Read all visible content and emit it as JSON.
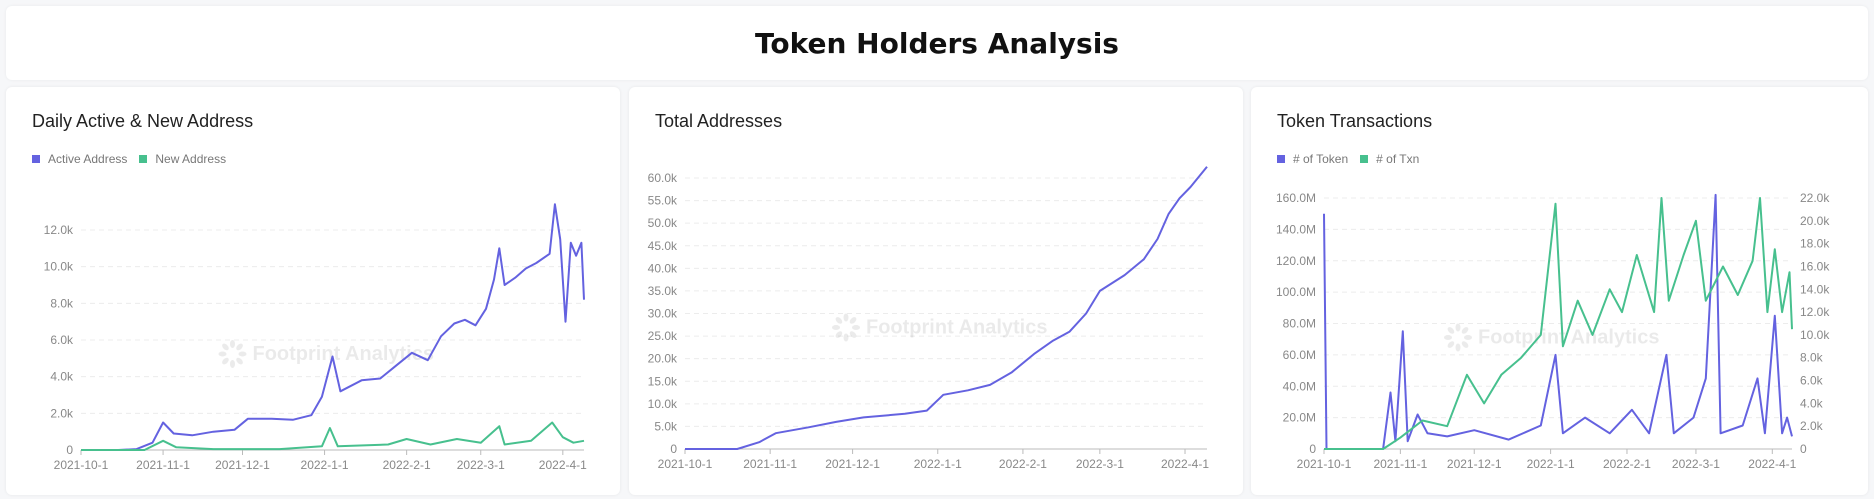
{
  "page_title": "Token Holders Analysis",
  "watermark": "Footprint Analytics",
  "colors": {
    "purple": "#6462e0",
    "green": "#47c08e"
  },
  "chart_data": [
    {
      "type": "line",
      "title": "Daily Active & New Address",
      "x_ticks": [
        "2021-10-1",
        "2021-11-1",
        "2021-12-1",
        "2022-1-1",
        "2022-2-1",
        "2022-3-1",
        "2022-4-1"
      ],
      "y_ticks": [
        "0",
        "2.0k",
        "4.0k",
        "6.0k",
        "8.0k",
        "10.0k",
        "12.0k"
      ],
      "ylim": [
        0,
        12000
      ],
      "xlim": [
        "2021-10-01",
        "2022-04-09"
      ],
      "series": [
        {
          "name": "Active Address",
          "color": "#6462e0",
          "points": [
            [
              "2021-10-01",
              0
            ],
            [
              "2021-10-15",
              0
            ],
            [
              "2021-10-22",
              50
            ],
            [
              "2021-10-28",
              400
            ],
            [
              "2021-11-01",
              1500
            ],
            [
              "2021-11-05",
              900
            ],
            [
              "2021-11-12",
              800
            ],
            [
              "2021-11-20",
              1000
            ],
            [
              "2021-11-28",
              1100
            ],
            [
              "2021-12-03",
              1700
            ],
            [
              "2021-12-12",
              1700
            ],
            [
              "2021-12-20",
              1650
            ],
            [
              "2021-12-27",
              1900
            ],
            [
              "2021-12-31",
              2900
            ],
            [
              "2022-01-04",
              5100
            ],
            [
              "2022-01-07",
              3200
            ],
            [
              "2022-01-15",
              3800
            ],
            [
              "2022-01-22",
              3900
            ],
            [
              "2022-01-28",
              4600
            ],
            [
              "2022-02-03",
              5300
            ],
            [
              "2022-02-09",
              4900
            ],
            [
              "2022-02-14",
              6200
            ],
            [
              "2022-02-19",
              6900
            ],
            [
              "2022-02-23",
              7100
            ],
            [
              "2022-02-27",
              6800
            ],
            [
              "2022-03-03",
              7700
            ],
            [
              "2022-03-06",
              9300
            ],
            [
              "2022-03-08",
              11000
            ],
            [
              "2022-03-10",
              9000
            ],
            [
              "2022-03-14",
              9400
            ],
            [
              "2022-03-18",
              9900
            ],
            [
              "2022-03-22",
              10200
            ],
            [
              "2022-03-27",
              10700
            ],
            [
              "2022-03-29",
              13400
            ],
            [
              "2022-03-31",
              11500
            ],
            [
              "2022-04-02",
              7000
            ],
            [
              "2022-04-04",
              11300
            ],
            [
              "2022-04-06",
              10600
            ],
            [
              "2022-04-08",
              11300
            ],
            [
              "2022-04-09",
              8200
            ]
          ]
        },
        {
          "name": "New Address",
          "color": "#47c08e",
          "points": [
            [
              "2021-10-01",
              0
            ],
            [
              "2021-10-25",
              0
            ],
            [
              "2021-11-01",
              500
            ],
            [
              "2021-11-06",
              150
            ],
            [
              "2021-11-20",
              50
            ],
            [
              "2021-12-15",
              50
            ],
            [
              "2021-12-31",
              200
            ],
            [
              "2022-01-03",
              1200
            ],
            [
              "2022-01-06",
              200
            ],
            [
              "2022-01-25",
              300
            ],
            [
              "2022-02-01",
              600
            ],
            [
              "2022-02-10",
              300
            ],
            [
              "2022-02-20",
              600
            ],
            [
              "2022-03-01",
              400
            ],
            [
              "2022-03-08",
              1300
            ],
            [
              "2022-03-10",
              300
            ],
            [
              "2022-03-20",
              500
            ],
            [
              "2022-03-28",
              1500
            ],
            [
              "2022-04-01",
              700
            ],
            [
              "2022-04-05",
              400
            ],
            [
              "2022-04-09",
              500
            ]
          ]
        }
      ]
    },
    {
      "type": "line",
      "title": "Total Addresses",
      "x_ticks": [
        "2021-10-1",
        "2021-11-1",
        "2021-12-1",
        "2022-1-1",
        "2022-2-1",
        "2022-3-1",
        "2022-4-1"
      ],
      "y_ticks": [
        "0",
        "5.0k",
        "10.0k",
        "15.0k",
        "20.0k",
        "25.0k",
        "30.0k",
        "35.0k",
        "40.0k",
        "45.0k",
        "50.0k",
        "55.0k",
        "60.0k"
      ],
      "ylim": [
        0,
        60000
      ],
      "xlim": [
        "2021-10-01",
        "2022-04-09"
      ],
      "series": [
        {
          "name": "Total Addresses",
          "color": "#6462e0",
          "points": [
            [
              "2021-10-01",
              0
            ],
            [
              "2021-10-20",
              0
            ],
            [
              "2021-10-28",
              1500
            ],
            [
              "2021-11-03",
              3500
            ],
            [
              "2021-11-15",
              4800
            ],
            [
              "2021-11-25",
              6000
            ],
            [
              "2021-12-05",
              7000
            ],
            [
              "2021-12-20",
              7800
            ],
            [
              "2021-12-28",
              8500
            ],
            [
              "2022-01-03",
              12000
            ],
            [
              "2022-01-12",
              13000
            ],
            [
              "2022-01-20",
              14200
            ],
            [
              "2022-01-28",
              17000
            ],
            [
              "2022-02-05",
              21000
            ],
            [
              "2022-02-12",
              24000
            ],
            [
              "2022-02-18",
              26000
            ],
            [
              "2022-02-24",
              30000
            ],
            [
              "2022-03-01",
              35000
            ],
            [
              "2022-03-10",
              38500
            ],
            [
              "2022-03-17",
              42000
            ],
            [
              "2022-03-22",
              46500
            ],
            [
              "2022-03-26",
              52000
            ],
            [
              "2022-03-30",
              55500
            ],
            [
              "2022-04-03",
              58000
            ],
            [
              "2022-04-09",
              62500
            ]
          ]
        }
      ]
    },
    {
      "type": "line",
      "title": "Token Transactions",
      "x_ticks": [
        "2021-10-1",
        "2021-11-1",
        "2021-12-1",
        "2022-1-1",
        "2022-2-1",
        "2022-3-1",
        "2022-4-1"
      ],
      "y_ticks": [
        "0",
        "20.0M",
        "40.0M",
        "60.0M",
        "80.0M",
        "100.0M",
        "120.0M",
        "140.0M",
        "160.0M"
      ],
      "ylim": [
        0,
        160000000
      ],
      "y2_ticks": [
        "0",
        "2.0k",
        "4.0k",
        "6.0k",
        "8.0k",
        "10.0k",
        "12.0k",
        "14.0k",
        "16.0k",
        "18.0k",
        "20.0k",
        "22.0k"
      ],
      "y2lim": [
        0,
        22000
      ],
      "xlim": [
        "2021-10-01",
        "2022-04-09"
      ],
      "series": [
        {
          "name": "# of Token",
          "axis": "left",
          "color": "#6462e0",
          "points": [
            [
              "2021-10-01",
              150000000
            ],
            [
              "2021-10-02",
              0
            ],
            [
              "2021-10-25",
              0
            ],
            [
              "2021-10-28",
              36000000
            ],
            [
              "2021-10-30",
              5000000
            ],
            [
              "2021-11-02",
              75000000
            ],
            [
              "2021-11-04",
              5000000
            ],
            [
              "2021-11-08",
              22000000
            ],
            [
              "2021-11-12",
              10000000
            ],
            [
              "2021-11-20",
              8000000
            ],
            [
              "2021-12-01",
              12000000
            ],
            [
              "2021-12-15",
              6000000
            ],
            [
              "2021-12-28",
              15000000
            ],
            [
              "2022-01-03",
              60000000
            ],
            [
              "2022-01-06",
              10000000
            ],
            [
              "2022-01-15",
              20000000
            ],
            [
              "2022-01-25",
              10000000
            ],
            [
              "2022-02-03",
              25000000
            ],
            [
              "2022-02-10",
              10000000
            ],
            [
              "2022-02-17",
              60000000
            ],
            [
              "2022-02-20",
              10000000
            ],
            [
              "2022-02-28",
              20000000
            ],
            [
              "2022-03-05",
              45000000
            ],
            [
              "2022-03-09",
              162000000
            ],
            [
              "2022-03-11",
              10000000
            ],
            [
              "2022-03-20",
              15000000
            ],
            [
              "2022-03-26",
              45000000
            ],
            [
              "2022-03-29",
              10000000
            ],
            [
              "2022-04-02",
              85000000
            ],
            [
              "2022-04-05",
              10000000
            ],
            [
              "2022-04-07",
              20000000
            ],
            [
              "2022-04-09",
              8000000
            ]
          ]
        },
        {
          "name": "# of Txn",
          "axis": "right",
          "color": "#47c08e",
          "points": [
            [
              "2021-10-01",
              0
            ],
            [
              "2021-10-25",
              0
            ],
            [
              "2021-11-01",
              1000
            ],
            [
              "2021-11-10",
              2500
            ],
            [
              "2021-11-20",
              2000
            ],
            [
              "2021-11-28",
              6500
            ],
            [
              "2021-12-05",
              4000
            ],
            [
              "2021-12-12",
              6500
            ],
            [
              "2021-12-20",
              8000
            ],
            [
              "2021-12-28",
              10000
            ],
            [
              "2022-01-03",
              21500
            ],
            [
              "2022-01-06",
              9000
            ],
            [
              "2022-01-12",
              13000
            ],
            [
              "2022-01-18",
              10000
            ],
            [
              "2022-01-25",
              14000
            ],
            [
              "2022-01-30",
              12000
            ],
            [
              "2022-02-05",
              17000
            ],
            [
              "2022-02-12",
              12000
            ],
            [
              "2022-02-15",
              22000
            ],
            [
              "2022-02-18",
              13000
            ],
            [
              "2022-02-24",
              17000
            ],
            [
              "2022-03-01",
              20000
            ],
            [
              "2022-03-05",
              13000
            ],
            [
              "2022-03-12",
              16000
            ],
            [
              "2022-03-18",
              13500
            ],
            [
              "2022-03-24",
              16500
            ],
            [
              "2022-03-27",
              22000
            ],
            [
              "2022-03-30",
              12000
            ],
            [
              "2022-04-02",
              17500
            ],
            [
              "2022-04-05",
              12000
            ],
            [
              "2022-04-08",
              15500
            ],
            [
              "2022-04-09",
              10500
            ]
          ]
        }
      ]
    }
  ]
}
